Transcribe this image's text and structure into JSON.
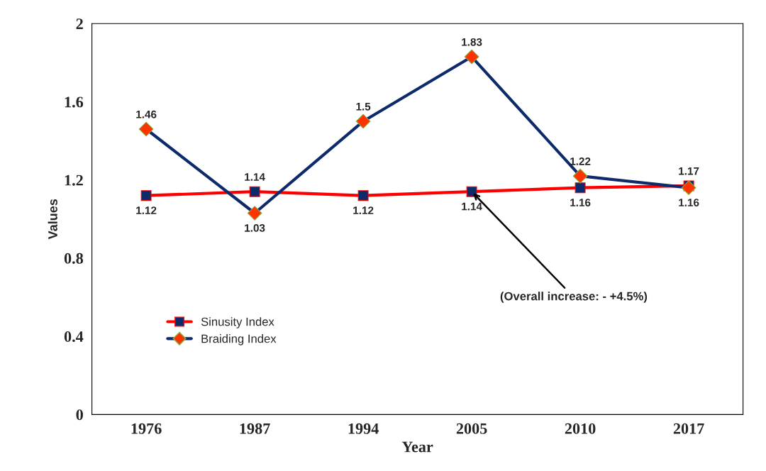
{
  "chart_data": {
    "type": "line",
    "xlabel": "Year",
    "ylabel": "Values",
    "categories": [
      "1976",
      "1987",
      "1994",
      "2005",
      "2010",
      "2017"
    ],
    "series": [
      {
        "name": "Sinusity Index",
        "color": "#ff0000",
        "marker": "square",
        "values": [
          1.12,
          1.14,
          1.12,
          1.14,
          1.16,
          1.17
        ]
      },
      {
        "name": "Braiding Index",
        "color": "#0d2a6b",
        "marker": "diamond",
        "values": [
          1.46,
          1.03,
          1.5,
          1.83,
          1.22,
          1.16
        ]
      }
    ],
    "ylim": [
      0,
      2
    ],
    "yticks": [
      0,
      0.4,
      0.8,
      1.2,
      1.6,
      2
    ],
    "grid": false,
    "legend": "bottom left",
    "data_labels": true,
    "annotations": [
      {
        "text": "(Overall increase: - +4.5%)",
        "x": "2005",
        "y": 1.14
      }
    ]
  }
}
